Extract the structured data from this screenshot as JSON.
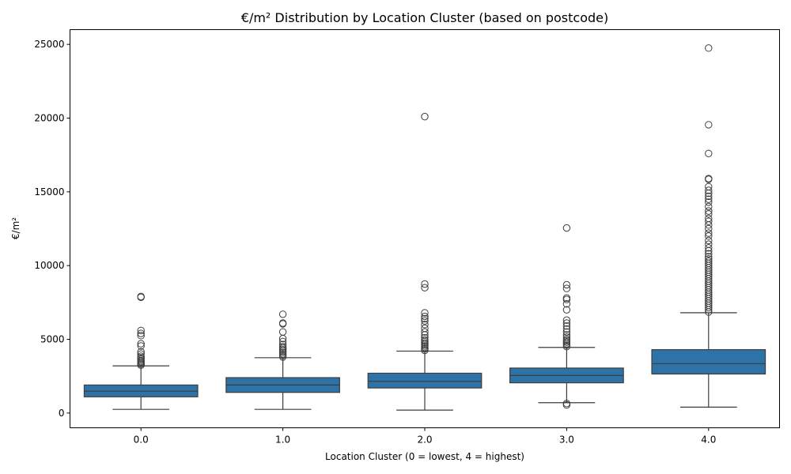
{
  "chart_data": {
    "type": "box",
    "title": "€/m² Distribution by Location Cluster (based on postcode)",
    "xlabel": "Location Cluster (0 = lowest, 4 = highest)",
    "ylabel": "€/m²",
    "ylim": [
      -1000,
      26000
    ],
    "yticks": [
      0,
      5000,
      10000,
      15000,
      20000,
      25000
    ],
    "ytick_labels": [
      "0",
      "5000",
      "10000",
      "15000",
      "20000",
      "25000"
    ],
    "categories": [
      "0.0",
      "1.0",
      "2.0",
      "3.0",
      "4.0"
    ],
    "grid": false,
    "legend": "none",
    "box_color": "#2d73a8",
    "line_color": "#3d3d3d",
    "boxes": [
      {
        "category": "0.0",
        "whisker_low": 250,
        "q1": 1100,
        "median": 1480,
        "q3": 1900,
        "whisker_high": 3200,
        "outliers": [
          3250,
          3320,
          3400,
          3480,
          3550,
          3650,
          3750,
          3850,
          4000,
          4150,
          4550,
          4700,
          5250,
          5400,
          5600,
          7850,
          7900
        ]
      },
      {
        "category": "1.0",
        "whisker_low": 250,
        "q1": 1400,
        "median": 1900,
        "q3": 2400,
        "whisker_high": 3750,
        "outliers": [
          3800,
          3900,
          4000,
          4100,
          4200,
          4300,
          4400,
          4500,
          4650,
          4850,
          5050,
          5500,
          6050,
          6100,
          6700
        ]
      },
      {
        "category": "2.0",
        "whisker_low": 200,
        "q1": 1700,
        "median": 2150,
        "q3": 2700,
        "whisker_high": 4200,
        "outliers": [
          4250,
          4350,
          4450,
          4550,
          4650,
          4750,
          4850,
          4950,
          5100,
          5300,
          5500,
          5750,
          6000,
          6250,
          6400,
          6550,
          6800,
          8500,
          8750,
          20100
        ]
      },
      {
        "category": "3.0",
        "whisker_low": 700,
        "q1": 2050,
        "median": 2550,
        "q3": 3050,
        "whisker_high": 4450,
        "outliers": [
          550,
          650,
          4500,
          4600,
          4700,
          4800,
          4900,
          5000,
          5150,
          5300,
          5500,
          5700,
          5900,
          6100,
          6300,
          7000,
          7400,
          7700,
          7800,
          8450,
          8700,
          12550
        ]
      },
      {
        "category": "4.0",
        "whisker_low": 400,
        "q1": 2650,
        "median": 3350,
        "q3": 4300,
        "whisker_high": 6800,
        "outliers": [
          6850,
          7000,
          7150,
          7300,
          7450,
          7600,
          7750,
          7900,
          8050,
          8200,
          8350,
          8500,
          8650,
          8800,
          8950,
          9100,
          9250,
          9400,
          9550,
          9700,
          9850,
          10000,
          10150,
          10300,
          10450,
          10600,
          10800,
          11000,
          11200,
          11450,
          11700,
          12000,
          12200,
          12500,
          12750,
          13000,
          13200,
          13500,
          13700,
          14000,
          14300,
          14500,
          14700,
          14900,
          15100,
          15350,
          15850,
          15900,
          17600,
          19550,
          24750
        ]
      }
    ]
  }
}
